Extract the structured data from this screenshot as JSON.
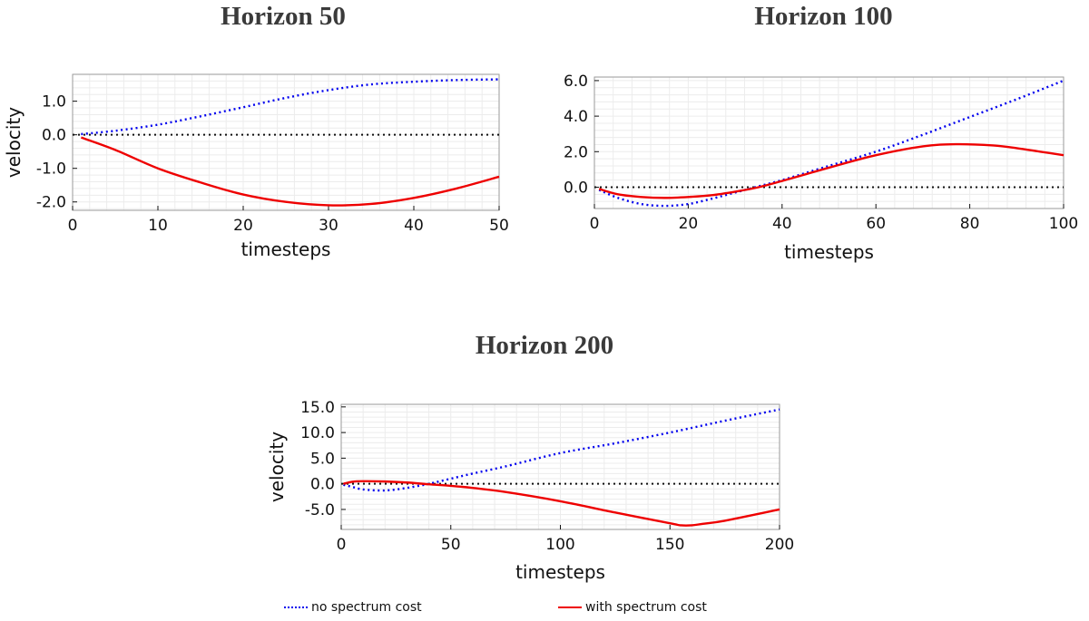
{
  "chart_data": [
    {
      "type": "line",
      "title": "Horizon 50",
      "xlabel": "timesteps",
      "ylabel": "velocity",
      "xlim": [
        0,
        50
      ],
      "ylim": [
        -2.25,
        1.8
      ],
      "xticks": [
        0,
        10,
        20,
        30,
        40,
        50
      ],
      "yticks": [
        -2.0,
        -1.0,
        0.0,
        1.0
      ],
      "ytick_labels": [
        "-2.0",
        "-1.0",
        "0.0",
        "1.0"
      ],
      "grid": true,
      "zero_line": true,
      "series": [
        {
          "name": "no spectrum cost",
          "style": "dotted",
          "color": "#0000ee",
          "x": [
            1,
            5,
            10,
            15,
            20,
            25,
            30,
            35,
            40,
            45,
            50
          ],
          "y": [
            0.02,
            0.12,
            0.3,
            0.55,
            0.82,
            1.1,
            1.33,
            1.5,
            1.58,
            1.63,
            1.65
          ]
        },
        {
          "name": "with spectrum cost",
          "style": "solid",
          "color": "#ee0000",
          "x": [
            1,
            5,
            10,
            15,
            20,
            25,
            30,
            35,
            40,
            45,
            50
          ],
          "y": [
            -0.08,
            -0.45,
            -1.0,
            -1.42,
            -1.78,
            -2.0,
            -2.1,
            -2.06,
            -1.88,
            -1.6,
            -1.25
          ]
        }
      ]
    },
    {
      "type": "line",
      "title": "Horizon 100",
      "xlabel": "timesteps",
      "ylabel": "",
      "xlim": [
        0,
        100
      ],
      "ylim": [
        -1.2,
        6.2
      ],
      "xticks": [
        0,
        20,
        40,
        60,
        80,
        100
      ],
      "yticks": [
        0.0,
        2.0,
        4.0,
        6.0
      ],
      "ytick_labels": [
        "0.0",
        "2.0",
        "4.0",
        "6.0"
      ],
      "grid": true,
      "zero_line": true,
      "series": [
        {
          "name": "no spectrum cost",
          "style": "dotted",
          "color": "#0000ee",
          "x": [
            1,
            5,
            10,
            15,
            20,
            25,
            30,
            35,
            40,
            50,
            60,
            70,
            80,
            90,
            100
          ],
          "y": [
            -0.15,
            -0.6,
            -0.95,
            -1.05,
            -0.95,
            -0.65,
            -0.3,
            0.05,
            0.4,
            1.2,
            2.0,
            2.95,
            3.95,
            4.95,
            6.0
          ]
        },
        {
          "name": "with spectrum cost",
          "style": "solid",
          "color": "#ee0000",
          "x": [
            1,
            5,
            10,
            15,
            20,
            25,
            30,
            35,
            40,
            50,
            60,
            70,
            77,
            85,
            90,
            95,
            100
          ],
          "y": [
            -0.1,
            -0.4,
            -0.55,
            -0.6,
            -0.55,
            -0.45,
            -0.25,
            0.0,
            0.35,
            1.1,
            1.8,
            2.3,
            2.42,
            2.35,
            2.2,
            2.0,
            1.8
          ]
        }
      ]
    },
    {
      "type": "line",
      "title": "Horizon 200",
      "xlabel": "timesteps",
      "ylabel": "velocity",
      "xlim": [
        0,
        200
      ],
      "ylim": [
        -8.9,
        15.5
      ],
      "xticks": [
        0,
        50,
        100,
        150,
        200
      ],
      "yticks": [
        -5.0,
        0.0,
        5.0,
        10.0,
        15.0
      ],
      "ytick_labels": [
        "-5.0",
        "0.0",
        "5.0",
        "10.0",
        "15.0"
      ],
      "grid": true,
      "zero_line": true,
      "series": [
        {
          "name": "no spectrum cost",
          "style": "dotted",
          "color": "#0000ee",
          "x": [
            1,
            5,
            10,
            20,
            30,
            40,
            50,
            60,
            75,
            100,
            125,
            150,
            175,
            200
          ],
          "y": [
            -0.2,
            -0.6,
            -1.1,
            -1.3,
            -0.8,
            0.0,
            1.0,
            2.0,
            3.4,
            6.0,
            7.9,
            10.0,
            12.3,
            14.5
          ]
        },
        {
          "name": "with spectrum cost",
          "style": "solid",
          "color": "#ee0000",
          "x": [
            1,
            5,
            10,
            20,
            30,
            40,
            50,
            60,
            75,
            100,
            125,
            150,
            155,
            160,
            165,
            175,
            200
          ],
          "y": [
            0.0,
            0.4,
            0.5,
            0.45,
            0.25,
            -0.1,
            -0.4,
            -0.8,
            -1.6,
            -3.4,
            -5.6,
            -7.7,
            -8.1,
            -8.1,
            -7.8,
            -7.2,
            -5.0
          ]
        }
      ]
    }
  ],
  "legend": {
    "items": [
      {
        "label": "no spectrum cost",
        "color": "#0000ee",
        "style": "dotted"
      },
      {
        "label": "with spectrum cost",
        "color": "#ee0000",
        "style": "solid"
      }
    ],
    "placement": "bottom"
  }
}
